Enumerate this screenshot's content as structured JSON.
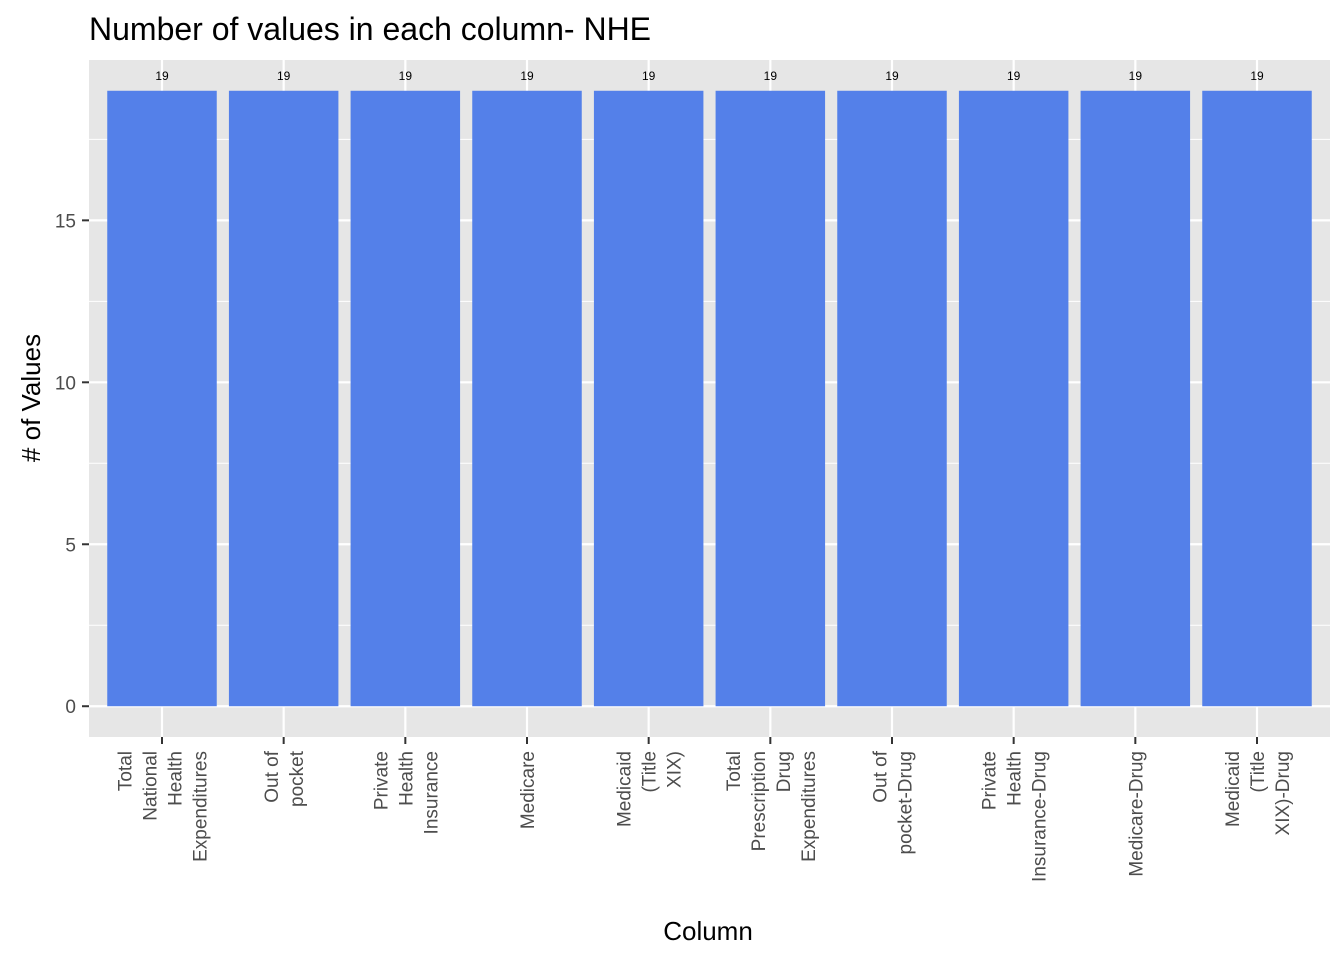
{
  "chart_data": {
    "type": "bar",
    "title": "Number of values in each column- NHE",
    "xlabel": "Column",
    "ylabel": "# of Values",
    "categories": [
      [
        "Total",
        "National",
        "Health",
        "Expenditures"
      ],
      [
        "Out of",
        "pocket"
      ],
      [
        "Private",
        "Health",
        "Insurance"
      ],
      [
        "Medicare"
      ],
      [
        "Medicaid",
        "(Title",
        "XIX)"
      ],
      [
        "Total",
        "Prescription",
        "Drug",
        "Expenditures"
      ],
      [
        "Out of",
        "pocket-Drug"
      ],
      [
        "Private",
        "Health",
        "Insurance-Drug"
      ],
      [
        "Medicare-Drug"
      ],
      [
        "Medicaid",
        "(Title",
        "XIX)-Drug"
      ]
    ],
    "values": [
      19,
      19,
      19,
      19,
      19,
      19,
      19,
      19,
      19,
      19
    ],
    "data_labels": [
      "19",
      "19",
      "19",
      "19",
      "19",
      "19",
      "19",
      "19",
      "19",
      "19"
    ],
    "ylim": [
      -0.95,
      19.95
    ],
    "yticks": [
      0,
      5,
      10,
      15
    ],
    "ytick_labels": [
      "0",
      "5",
      "10",
      "15"
    ],
    "grid": true,
    "legend": "none",
    "colors": {
      "bar": "#5480e9",
      "panel": "#e6e6e6",
      "grid": "#ffffff"
    }
  }
}
